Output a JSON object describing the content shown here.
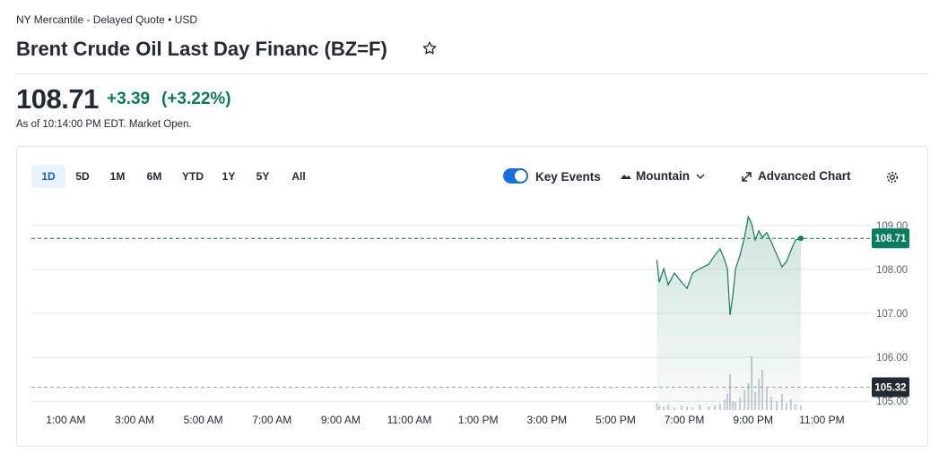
{
  "header": {
    "exchange": "NY Mercantile - Delayed Quote • USD",
    "title": "Brent Crude Oil Last Day Financ (BZ=F)"
  },
  "quote": {
    "price": "108.71",
    "change": "+3.39",
    "change_percent": "(+3.22%)",
    "as_of": "As of 10:14:00 PM EDT. Market Open."
  },
  "toolbar": {
    "ranges": [
      "1D",
      "5D",
      "1M",
      "6M",
      "YTD",
      "1Y",
      "5Y",
      "All"
    ],
    "key_events": "Key Events",
    "chart_style": "Mountain",
    "advanced_chart": "Advanced Chart"
  },
  "chart_data": {
    "type": "area",
    "color": "#137a58",
    "x": [
      18.2,
      18.27,
      18.4,
      18.53,
      18.71,
      18.92,
      19.08,
      19.24,
      19.45,
      19.71,
      19.89,
      20.04,
      20.17,
      20.25,
      20.33,
      20.41,
      20.49,
      20.62,
      20.75,
      20.86,
      20.96,
      21.06,
      21.17,
      21.27,
      21.4,
      21.53,
      21.69,
      21.84,
      21.97,
      22.1,
      22.23,
      22.39
    ],
    "values": [
      108.22,
      107.71,
      108.02,
      107.65,
      107.92,
      107.71,
      107.57,
      107.92,
      108.02,
      108.12,
      108.33,
      108.47,
      108.22,
      108.02,
      106.96,
      107.41,
      108.02,
      108.33,
      108.73,
      109.2,
      109.04,
      108.67,
      108.88,
      108.73,
      108.84,
      108.63,
      108.33,
      108.06,
      108.18,
      108.43,
      108.67,
      108.71
    ],
    "volume": [
      8,
      5,
      4,
      6,
      3,
      5,
      4,
      3,
      6,
      4,
      5,
      7,
      12,
      18,
      40,
      10,
      9,
      14,
      22,
      30,
      60,
      20,
      35,
      45,
      25,
      15,
      10,
      18,
      8,
      12,
      6,
      5
    ],
    "xlim": [
      0,
      24.4
    ],
    "xticks": [
      {
        "value": 1,
        "label": "1:00 AM"
      },
      {
        "value": 3,
        "label": "3:00 AM"
      },
      {
        "value": 5,
        "label": "5:00 AM"
      },
      {
        "value": 7,
        "label": "7:00 AM"
      },
      {
        "value": 9,
        "label": "9:00 AM"
      },
      {
        "value": 11,
        "label": "11:00 AM"
      },
      {
        "value": 13,
        "label": "1:00 PM"
      },
      {
        "value": 15,
        "label": "3:00 PM"
      },
      {
        "value": 17,
        "label": "5:00 PM"
      },
      {
        "value": 19,
        "label": "7:00 PM"
      },
      {
        "value": 21,
        "label": "9:00 PM"
      },
      {
        "value": 23,
        "label": "11:00 PM"
      }
    ],
    "ylim": [
      104.8,
      109.55
    ],
    "yticks": [
      {
        "value": 105,
        "label": "105.00"
      },
      {
        "value": 106,
        "label": "106.00"
      },
      {
        "value": 107,
        "label": "107.00"
      },
      {
        "value": 108,
        "label": "108.00"
      },
      {
        "value": 109,
        "label": "109.00"
      }
    ],
    "current_price": 108.71,
    "previous_close": 105.32,
    "grid": true
  }
}
